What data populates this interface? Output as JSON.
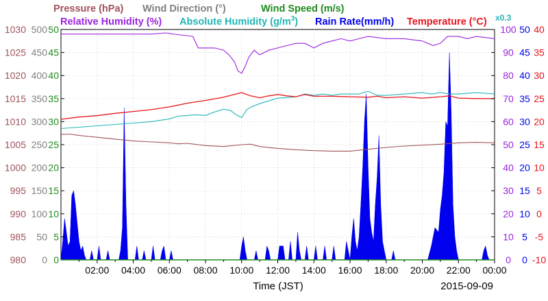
{
  "chart_data": {
    "type": "line",
    "legend": {
      "pressure": "Pressure (hPa)",
      "wind_direction": "Wind Direction (°)",
      "wind_speed": "Wind Speed (m/s)",
      "relative_humidity": "Relative Humidity (%)",
      "absolute_humidity_prefix": "Absolute Humidity (g/m",
      "absolute_humidity_sup": "3",
      "absolute_humidity_suffix": ")",
      "rain_rate": "Rain Rate(mm/h)",
      "temperature": "Temperature (°C)",
      "scale_note": "x0.3"
    },
    "colors": {
      "pressure": "#a0525a",
      "wind_direction": "#808080",
      "wind_speed": "#1f8a1f",
      "relative_humidity": "#9a22dd",
      "absolute_humidity": "#22b5b5",
      "rain_rate": "#0000ee",
      "temperature": "#e8131c"
    },
    "xlabel": "Time (JST)",
    "date_label": "2015-09-09",
    "x_ticks": [
      "02:00",
      "04:00",
      "06:00",
      "08:00",
      "10:00",
      "12:00",
      "14:00",
      "16:00",
      "18:00",
      "20:00",
      "22:00",
      "00:00"
    ],
    "x_range_hours": [
      0,
      24
    ],
    "y_axes": {
      "pressure": [
        "980",
        "985",
        "990",
        "995",
        "1000",
        "1005",
        "1010",
        "1015",
        "1020",
        "1025",
        "1030"
      ],
      "wind_direction": [
        "0",
        "50",
        "100",
        "150",
        "200",
        "250",
        "300",
        "350",
        "400",
        "450",
        "500"
      ],
      "wind_speed": [
        "0",
        "5",
        "10",
        "15",
        "20",
        "25",
        "30",
        "35",
        "40",
        "45",
        "50"
      ],
      "relative_humidity": [
        "0",
        "10",
        "20",
        "30",
        "40",
        "50",
        "60",
        "70",
        "80",
        "90",
        "100"
      ],
      "rain_rate": [
        "0",
        "5",
        "10",
        "15",
        "20",
        "25",
        "30",
        "35",
        "40",
        "45",
        "50"
      ],
      "temperature": [
        "-10",
        "-5",
        "0",
        "5",
        "10",
        "15",
        "20",
        "25",
        "30",
        "35",
        "40"
      ]
    },
    "series": [
      {
        "name": "Relative Humidity (%)",
        "key": "relative_humidity",
        "ylim": [
          0,
          100
        ],
        "points": [
          [
            0,
            98
          ],
          [
            3,
            98
          ],
          [
            5,
            98
          ],
          [
            5.8,
            98.5
          ],
          [
            6.2,
            98
          ],
          [
            7.3,
            97
          ],
          [
            7.6,
            92
          ],
          [
            8.5,
            92
          ],
          [
            9,
            91
          ],
          [
            9.3,
            89
          ],
          [
            9.6,
            86
          ],
          [
            9.8,
            82
          ],
          [
            10,
            81
          ],
          [
            10.2,
            84
          ],
          [
            10.4,
            88
          ],
          [
            10.7,
            91
          ],
          [
            11,
            89
          ],
          [
            11.5,
            91
          ],
          [
            12,
            92
          ],
          [
            12.5,
            93
          ],
          [
            13,
            94
          ],
          [
            13.5,
            94
          ],
          [
            14,
            92
          ],
          [
            14.5,
            94
          ],
          [
            15,
            95
          ],
          [
            15.5,
            96
          ],
          [
            16,
            95
          ],
          [
            16.5,
            96
          ],
          [
            17,
            97
          ],
          [
            18,
            96
          ],
          [
            19,
            96
          ],
          [
            20,
            95
          ],
          [
            20.6,
            93
          ],
          [
            21,
            94
          ],
          [
            21.4,
            97
          ],
          [
            22,
            97
          ],
          [
            22.5,
            96
          ],
          [
            23,
            97
          ],
          [
            24,
            96
          ]
        ]
      },
      {
        "name": "Absolute Humidity (g/m3)",
        "key": "absolute_humidity",
        "ylim": [
          0,
          166.7
        ],
        "points": [
          [
            0,
            95
          ],
          [
            1,
            96
          ],
          [
            2,
            97
          ],
          [
            3,
            98
          ],
          [
            4,
            99
          ],
          [
            5,
            100
          ],
          [
            6,
            102
          ],
          [
            6.5,
            104
          ],
          [
            7,
            104.5
          ],
          [
            7.5,
            105
          ],
          [
            8,
            104.5
          ],
          [
            8.5,
            107
          ],
          [
            9,
            109
          ],
          [
            9.4,
            108
          ],
          [
            9.7,
            105
          ],
          [
            10,
            103
          ],
          [
            10.3,
            109
          ],
          [
            10.6,
            111
          ],
          [
            11,
            113
          ],
          [
            11.5,
            115
          ],
          [
            12,
            117
          ],
          [
            13,
            118
          ],
          [
            13.5,
            120
          ],
          [
            14,
            119
          ],
          [
            14.5,
            120
          ],
          [
            15,
            119
          ],
          [
            15.5,
            120
          ],
          [
            16,
            120
          ],
          [
            16.5,
            120
          ],
          [
            17,
            122
          ],
          [
            17.5,
            119
          ],
          [
            18,
            119
          ],
          [
            19,
            120
          ],
          [
            20,
            121
          ],
          [
            20.5,
            120
          ],
          [
            21,
            121
          ],
          [
            21.5,
            120
          ],
          [
            22,
            120
          ],
          [
            23,
            121
          ],
          [
            24,
            120
          ]
        ]
      },
      {
        "name": "Temperature (°C)",
        "key": "temperature",
        "ylim": [
          -10,
          40
        ],
        "points": [
          [
            0,
            20.5
          ],
          [
            1,
            21
          ],
          [
            2,
            21.3
          ],
          [
            3,
            21.8
          ],
          [
            4,
            22.2
          ],
          [
            5,
            22.6
          ],
          [
            6,
            23.2
          ],
          [
            7,
            24
          ],
          [
            8,
            24.6
          ],
          [
            9,
            25.3
          ],
          [
            9.5,
            25.8
          ],
          [
            10,
            26.3
          ],
          [
            10.5,
            25.6
          ],
          [
            11,
            25.2
          ],
          [
            11.5,
            25.6
          ],
          [
            12,
            25.9
          ],
          [
            12.5,
            25.6
          ],
          [
            13,
            25.4
          ],
          [
            13.5,
            25.9
          ],
          [
            14,
            25.5
          ],
          [
            15,
            25.5
          ],
          [
            16,
            25.4
          ],
          [
            17,
            25.3
          ],
          [
            17.5,
            25.5
          ],
          [
            18,
            25.2
          ],
          [
            19,
            25.4
          ],
          [
            20,
            25.1
          ],
          [
            21,
            25.4
          ],
          [
            21.5,
            25.6
          ],
          [
            22,
            25.1
          ],
          [
            23,
            25.0
          ],
          [
            24,
            25.0
          ]
        ]
      },
      {
        "name": "Pressure (hPa)",
        "key": "pressure",
        "ylim": [
          980,
          1030
        ],
        "points": [
          [
            0,
            1007.2
          ],
          [
            0.5,
            1007.3
          ],
          [
            1,
            1007.0
          ],
          [
            2,
            1006.6
          ],
          [
            3,
            1006.2
          ],
          [
            4,
            1005.8
          ],
          [
            5,
            1005.6
          ],
          [
            6,
            1005.4
          ],
          [
            6.5,
            1005.2
          ],
          [
            7,
            1005.3
          ],
          [
            8,
            1004.8
          ],
          [
            9,
            1004.6
          ],
          [
            10,
            1005.0
          ],
          [
            10.5,
            1005.1
          ],
          [
            11,
            1004.6
          ],
          [
            12,
            1004.2
          ],
          [
            13,
            1003.9
          ],
          [
            14,
            1003.7
          ],
          [
            15,
            1003.6
          ],
          [
            16,
            1003.6
          ],
          [
            17,
            1004.0
          ],
          [
            18,
            1004.4
          ],
          [
            19,
            1004.7
          ],
          [
            20,
            1004.9
          ],
          [
            21,
            1005.1
          ],
          [
            22,
            1005.4
          ],
          [
            23,
            1005.5
          ],
          [
            24,
            1005.4
          ]
        ]
      },
      {
        "name": "Rain Rate(mm/h)",
        "key": "rain_rate",
        "ylim": [
          0,
          50
        ],
        "points": [
          [
            0,
            0
          ],
          [
            0.1,
            4
          ],
          [
            0.2,
            9
          ],
          [
            0.3,
            6
          ],
          [
            0.4,
            3
          ],
          [
            0.5,
            4
          ],
          [
            0.6,
            14
          ],
          [
            0.7,
            15
          ],
          [
            0.8,
            12
          ],
          [
            0.9,
            8
          ],
          [
            1.0,
            4
          ],
          [
            1.1,
            2
          ],
          [
            1.2,
            3
          ],
          [
            1.3,
            1
          ],
          [
            1.4,
            0
          ],
          [
            1.6,
            0
          ],
          [
            1.7,
            2
          ],
          [
            1.8,
            0
          ],
          [
            2.0,
            0
          ],
          [
            2.1,
            3
          ],
          [
            2.2,
            0
          ],
          [
            2.5,
            0
          ],
          [
            2.6,
            2
          ],
          [
            2.7,
            0
          ],
          [
            3.2,
            0
          ],
          [
            3.3,
            2
          ],
          [
            3.4,
            7
          ],
          [
            3.5,
            33
          ],
          [
            3.6,
            12
          ],
          [
            3.7,
            0
          ],
          [
            4.1,
            0
          ],
          [
            4.2,
            3
          ],
          [
            4.3,
            0
          ],
          [
            4.5,
            0
          ],
          [
            4.6,
            2
          ],
          [
            4.7,
            0
          ],
          [
            5.0,
            0
          ],
          [
            5.1,
            3
          ],
          [
            5.2,
            0
          ],
          [
            5.5,
            0
          ],
          [
            5.6,
            2
          ],
          [
            5.7,
            3
          ],
          [
            5.8,
            0
          ],
          [
            6.0,
            0
          ],
          [
            6.1,
            2
          ],
          [
            6.2,
            0
          ],
          [
            9.9,
            0
          ],
          [
            10.0,
            3
          ],
          [
            10.1,
            5
          ],
          [
            10.2,
            2
          ],
          [
            10.3,
            0
          ],
          [
            10.7,
            0
          ],
          [
            10.8,
            2
          ],
          [
            10.9,
            0
          ],
          [
            11.3,
            0
          ],
          [
            11.4,
            3
          ],
          [
            11.5,
            2
          ],
          [
            11.6,
            0
          ],
          [
            12.0,
            0
          ],
          [
            12.1,
            3
          ],
          [
            12.2,
            3
          ],
          [
            12.3,
            3
          ],
          [
            12.4,
            0
          ],
          [
            12.6,
            0
          ],
          [
            12.7,
            4
          ],
          [
            12.8,
            0
          ],
          [
            13.0,
            0
          ],
          [
            13.1,
            6
          ],
          [
            13.2,
            2
          ],
          [
            13.3,
            0
          ],
          [
            13.5,
            0
          ],
          [
            13.6,
            3
          ],
          [
            13.7,
            0
          ],
          [
            14.0,
            0
          ],
          [
            14.1,
            3
          ],
          [
            14.2,
            0
          ],
          [
            14.5,
            0
          ],
          [
            14.6,
            3
          ],
          [
            14.7,
            0
          ],
          [
            15.0,
            0
          ],
          [
            15.1,
            3
          ],
          [
            15.2,
            0
          ],
          [
            15.7,
            0
          ],
          [
            15.8,
            4
          ],
          [
            15.9,
            2
          ],
          [
            16.0,
            0
          ],
          [
            16.1,
            5
          ],
          [
            16.2,
            9
          ],
          [
            16.3,
            4
          ],
          [
            16.4,
            2
          ],
          [
            16.5,
            5
          ],
          [
            16.6,
            12
          ],
          [
            16.7,
            20
          ],
          [
            16.8,
            30
          ],
          [
            16.9,
            36
          ],
          [
            17.0,
            20
          ],
          [
            17.1,
            9
          ],
          [
            17.2,
            6
          ],
          [
            17.3,
            4
          ],
          [
            17.4,
            12
          ],
          [
            17.5,
            18
          ],
          [
            17.6,
            27
          ],
          [
            17.7,
            12
          ],
          [
            17.8,
            4
          ],
          [
            17.9,
            2
          ],
          [
            18.0,
            0
          ],
          [
            18.3,
            0
          ],
          [
            18.4,
            2
          ],
          [
            18.5,
            0
          ],
          [
            20.3,
            0
          ],
          [
            20.5,
            3
          ],
          [
            20.7,
            7
          ],
          [
            20.9,
            6
          ],
          [
            21.0,
            11
          ],
          [
            21.1,
            14
          ],
          [
            21.2,
            19
          ],
          [
            21.3,
            30
          ],
          [
            21.4,
            29
          ],
          [
            21.5,
            45
          ],
          [
            21.6,
            32
          ],
          [
            21.7,
            12
          ],
          [
            21.8,
            5
          ],
          [
            21.9,
            2
          ],
          [
            22.0,
            0
          ],
          [
            23.3,
            0
          ],
          [
            23.4,
            2
          ],
          [
            23.5,
            3
          ],
          [
            23.6,
            1
          ],
          [
            23.7,
            0
          ],
          [
            24,
            0
          ]
        ]
      }
    ],
    "grid": true
  }
}
